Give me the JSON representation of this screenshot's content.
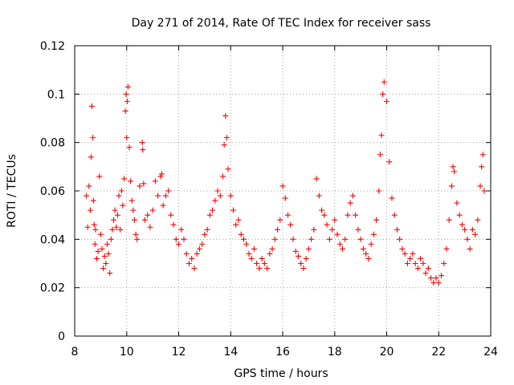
{
  "chart_data": {
    "type": "scatter",
    "title": "Day 271 of 2014, Rate Of TEC Index for receiver sass",
    "xlabel": "GPS time / hours",
    "ylabel": "ROTI / TECUs",
    "xlim": [
      8,
      24
    ],
    "ylim": [
      0,
      0.12
    ],
    "x_ticks": [
      8,
      10,
      12,
      14,
      16,
      18,
      20,
      22,
      24
    ],
    "x_tick_labels": [
      "8",
      "10",
      "12",
      "14",
      "16",
      "18",
      "20",
      "22",
      "24"
    ],
    "y_ticks": [
      0,
      0.02,
      0.04,
      0.06,
      0.08,
      0.1,
      0.12
    ],
    "y_tick_labels": [
      "0",
      "0.02",
      "0.04",
      "0.06",
      "0.08",
      "0.1",
      "0.12"
    ],
    "grid": true,
    "marker": "+",
    "color": "#ff0000",
    "series": [
      {
        "name": "sass",
        "x": [
          8.45,
          8.5,
          8.55,
          8.6,
          8.63,
          8.66,
          8.7,
          8.72,
          8.75,
          8.78,
          8.8,
          8.85,
          8.9,
          8.95,
          9.0,
          9.05,
          9.1,
          9.15,
          9.2,
          9.25,
          9.3,
          9.35,
          9.4,
          9.45,
          9.5,
          9.55,
          9.6,
          9.65,
          9.7,
          9.75,
          9.8,
          9.85,
          9.9,
          9.95,
          9.98,
          10.0,
          10.02,
          10.05,
          10.1,
          10.15,
          10.2,
          10.25,
          10.3,
          10.35,
          10.4,
          10.5,
          10.6,
          10.62,
          10.65,
          10.7,
          10.8,
          10.9,
          11.0,
          11.1,
          11.2,
          11.3,
          11.35,
          11.4,
          11.5,
          11.6,
          11.7,
          11.8,
          11.9,
          12.0,
          12.1,
          12.2,
          12.3,
          12.4,
          12.5,
          12.6,
          12.7,
          12.8,
          12.9,
          13.0,
          13.1,
          13.2,
          13.3,
          13.4,
          13.5,
          13.6,
          13.7,
          13.75,
          13.8,
          13.85,
          13.9,
          14.0,
          14.1,
          14.2,
          14.3,
          14.4,
          14.5,
          14.6,
          14.7,
          14.8,
          14.9,
          15.0,
          15.1,
          15.2,
          15.3,
          15.4,
          15.5,
          15.6,
          15.7,
          15.8,
          15.9,
          16.0,
          16.1,
          16.2,
          16.3,
          16.4,
          16.5,
          16.6,
          16.7,
          16.8,
          16.9,
          17.0,
          17.1,
          17.2,
          17.3,
          17.4,
          17.5,
          17.6,
          17.7,
          17.8,
          17.9,
          18.0,
          18.1,
          18.2,
          18.3,
          18.4,
          18.5,
          18.6,
          18.7,
          18.8,
          18.9,
          19.0,
          19.1,
          19.2,
          19.3,
          19.4,
          19.5,
          19.6,
          19.7,
          19.75,
          19.8,
          19.85,
          19.9,
          20.0,
          20.1,
          20.2,
          20.3,
          20.4,
          20.5,
          20.6,
          20.7,
          20.8,
          20.9,
          21.0,
          21.1,
          21.2,
          21.3,
          21.4,
          21.5,
          21.6,
          21.7,
          21.8,
          21.9,
          22.0,
          22.1,
          22.2,
          22.3,
          22.4,
          22.5,
          22.55,
          22.6,
          22.7,
          22.8,
          22.9,
          23.0,
          23.1,
          23.2,
          23.3,
          23.4,
          23.5,
          23.6,
          23.65,
          23.7,
          23.75
        ],
        "y": [
          0.058,
          0.045,
          0.062,
          0.052,
          0.074,
          0.095,
          0.082,
          0.056,
          0.046,
          0.038,
          0.044,
          0.032,
          0.035,
          0.066,
          0.042,
          0.036,
          0.028,
          0.033,
          0.03,
          0.038,
          0.034,
          0.026,
          0.04,
          0.044,
          0.048,
          0.052,
          0.045,
          0.05,
          0.058,
          0.044,
          0.06,
          0.054,
          0.065,
          0.093,
          0.1,
          0.082,
          0.097,
          0.103,
          0.078,
          0.064,
          0.056,
          0.052,
          0.048,
          0.042,
          0.04,
          0.062,
          0.08,
          0.077,
          0.063,
          0.048,
          0.05,
          0.045,
          0.052,
          0.064,
          0.058,
          0.066,
          0.067,
          0.054,
          0.058,
          0.06,
          0.05,
          0.046,
          0.04,
          0.038,
          0.044,
          0.04,
          0.034,
          0.03,
          0.032,
          0.028,
          0.034,
          0.036,
          0.038,
          0.042,
          0.044,
          0.05,
          0.052,
          0.056,
          0.06,
          0.058,
          0.066,
          0.079,
          0.091,
          0.082,
          0.069,
          0.058,
          0.052,
          0.046,
          0.048,
          0.042,
          0.04,
          0.038,
          0.034,
          0.032,
          0.036,
          0.03,
          0.028,
          0.032,
          0.03,
          0.028,
          0.034,
          0.036,
          0.04,
          0.044,
          0.048,
          0.062,
          0.057,
          0.05,
          0.046,
          0.04,
          0.035,
          0.033,
          0.03,
          0.028,
          0.032,
          0.036,
          0.04,
          0.044,
          0.065,
          0.058,
          0.052,
          0.05,
          0.046,
          0.04,
          0.044,
          0.048,
          0.042,
          0.038,
          0.036,
          0.04,
          0.05,
          0.055,
          0.058,
          0.05,
          0.044,
          0.04,
          0.036,
          0.034,
          0.032,
          0.038,
          0.042,
          0.048,
          0.06,
          0.075,
          0.083,
          0.1,
          0.105,
          0.097,
          0.072,
          0.057,
          0.05,
          0.044,
          0.04,
          0.036,
          0.034,
          0.03,
          0.032,
          0.034,
          0.03,
          0.028,
          0.032,
          0.03,
          0.026,
          0.028,
          0.024,
          0.022,
          0.024,
          0.022,
          0.025,
          0.03,
          0.036,
          0.048,
          0.062,
          0.07,
          0.068,
          0.055,
          0.05,
          0.046,
          0.044,
          0.04,
          0.036,
          0.044,
          0.042,
          0.048,
          0.062,
          0.07,
          0.075,
          0.06
        ]
      }
    ]
  }
}
